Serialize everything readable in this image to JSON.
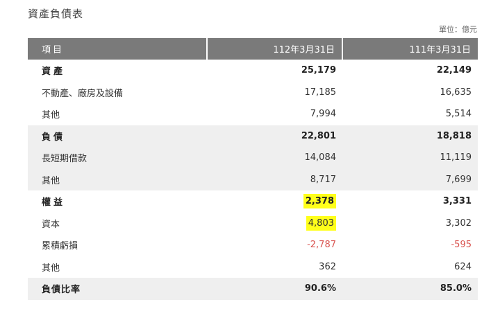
{
  "title": "資產負債表",
  "unit": "單位：億元",
  "columns": [
    "項目",
    "112年3月31日",
    "111年3月31日"
  ],
  "rows": [
    {
      "label": "資產",
      "v1": "25,179",
      "v2": "22,149"
    },
    {
      "label": "不動產、廠房及設備",
      "v1": "17,185",
      "v2": "16,635"
    },
    {
      "label": "其他",
      "v1": "7,994",
      "v2": "5,514"
    },
    {
      "label": "負債",
      "v1": "22,801",
      "v2": "18,818"
    },
    {
      "label": "長短期借款",
      "v1": "14,084",
      "v2": "11,119"
    },
    {
      "label": "其他",
      "v1": "8,717",
      "v2": "7,699"
    },
    {
      "label": "權益",
      "v1": "2,378",
      "v2": "3,331"
    },
    {
      "label": "資本",
      "v1": "4,803",
      "v2": "3,302"
    },
    {
      "label": "累積虧損",
      "v1": "-2,787",
      "v2": "-595"
    },
    {
      "label": "其他",
      "v1": "362",
      "v2": "624"
    },
    {
      "label": "負債比率",
      "v1": "90.6%",
      "v2": "85.0%"
    }
  ],
  "colors": {
    "header_bg": "#7a7a7a",
    "highlight": "#ffff1a",
    "negative": "#d9534f",
    "shade": "#efefef"
  }
}
